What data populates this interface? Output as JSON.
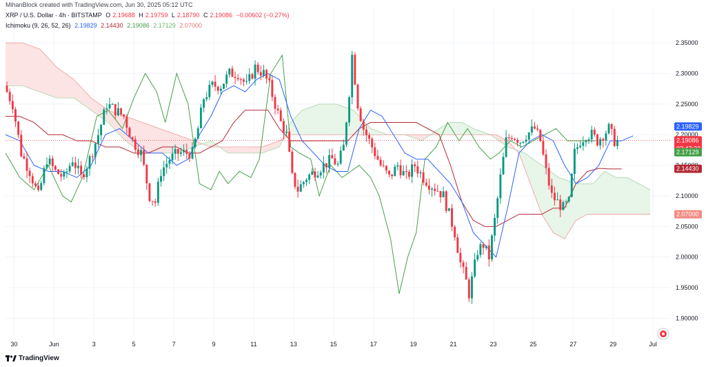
{
  "header": {
    "created_by": "MihanBlock created with TradingView.com, Jun 30, 2025 05:12 UTC",
    "symbol": "XRP / U.S. Dollar · 4h · BITSTAMP",
    "open_label": "O",
    "open": "2.19688",
    "high_label": "H",
    "high": "2.19759",
    "low_label": "L",
    "low": "2.18790",
    "close_label": "C",
    "close": "2.19086",
    "change": "−0.00602 (−0.27%)",
    "indicator": "Ichimoku (9, 26, 52, 26)",
    "ind_conversion": "2.19829",
    "ind_base": "2.14430",
    "ind_lagging": "2.19086",
    "ind_leadA": "2.17129",
    "ind_leadB": "2.07000"
  },
  "footer": {
    "brand": "TradingView"
  },
  "colors": {
    "up": "#089981",
    "down": "#f23645",
    "conversion": "#2962ff",
    "base": "#b22833",
    "lagging": "#43a047",
    "leadA": "#a5d6a7",
    "leadB": "#ef9a9a",
    "cloud_green": "#e8f5e9",
    "cloud_red": "#fce4e4"
  },
  "chart_data": {
    "type": "candlestick",
    "title": "XRP / U.S. Dollar · 4h · BITSTAMP",
    "y_ticks": [
      "2.35000",
      "2.30000",
      "2.25000",
      "2.20000",
      "2.15000",
      "2.10000",
      "2.05000",
      "2.00000",
      "1.95000",
      "1.90000"
    ],
    "ylim": [
      1.87,
      2.375
    ],
    "x_ticks": [
      "30",
      "Jun",
      "3",
      "5",
      "7",
      "9",
      "11",
      "13",
      "15",
      "17",
      "19",
      "21",
      "23",
      "25",
      "27",
      "29",
      "Jul"
    ],
    "x_tick_index": [
      3,
      17,
      31,
      45,
      59,
      73,
      87,
      101,
      115,
      129,
      143,
      157,
      171,
      185,
      199,
      213,
      227
    ],
    "xlim": [
      0,
      233
    ],
    "price_tags": [
      {
        "label": "2.19829",
        "value": 2.19829,
        "color": "#2962ff"
      },
      {
        "label": "2.19086",
        "value": 2.19086,
        "color": "#f23645",
        "sub": "02:47:22"
      },
      {
        "label": "2.17129",
        "value": 2.17129,
        "color": "#43a047"
      },
      {
        "label": "2.14430",
        "value": 2.1443,
        "color": "#b22833"
      },
      {
        "label": "2.07000",
        "value": 2.07,
        "color": "#f28b82"
      }
    ],
    "last_price": 2.19086,
    "lagging_anchors": [
      [
        0,
        2.17
      ],
      [
        5,
        2.13
      ],
      [
        10,
        2.11
      ],
      [
        15,
        2.15
      ],
      [
        20,
        2.1
      ],
      [
        23,
        2.09
      ],
      [
        27,
        2.13
      ],
      [
        32,
        2.23
      ],
      [
        36,
        2.24
      ],
      [
        41,
        2.21
      ],
      [
        45,
        2.26
      ],
      [
        49,
        2.3
      ],
      [
        53,
        2.27
      ],
      [
        56,
        2.22
      ],
      [
        60,
        2.3
      ],
      [
        64,
        2.25
      ],
      [
        68,
        2.12
      ],
      [
        72,
        2.11
      ],
      [
        75,
        2.14
      ],
      [
        78,
        2.12
      ],
      [
        82,
        2.14
      ],
      [
        86,
        2.13
      ],
      [
        89,
        2.16
      ],
      [
        93,
        2.3
      ],
      [
        97,
        2.33
      ],
      [
        100,
        2.18
      ],
      [
        103,
        2.17
      ],
      [
        107,
        2.16
      ],
      [
        110,
        2.1
      ],
      [
        114,
        2.15
      ],
      [
        118,
        2.13
      ],
      [
        121,
        2.14
      ],
      [
        124,
        2.15
      ],
      [
        128,
        2.13
      ],
      [
        131,
        2.1
      ],
      [
        135,
        2.03
      ],
      [
        138,
        1.94
      ],
      [
        141,
        2.0
      ],
      [
        144,
        2.04
      ],
      [
        147,
        2.16
      ],
      [
        151,
        2.18
      ],
      [
        155,
        2.22
      ],
      [
        159,
        2.19
      ],
      [
        162,
        2.21
      ],
      [
        166,
        2.18
      ],
      [
        170,
        2.16
      ],
      [
        173,
        2.17
      ],
      [
        177,
        2.19
      ],
      [
        181,
        2.18
      ],
      [
        185,
        2.19
      ],
      [
        189,
        2.2
      ],
      [
        193,
        2.21
      ],
      [
        197,
        2.19
      ],
      [
        201,
        2.19
      ],
      [
        204,
        2.19
      ],
      [
        207,
        2.19
      ]
    ],
    "conversion_anchors": [
      [
        0,
        2.2
      ],
      [
        5,
        2.19
      ],
      [
        10,
        2.15
      ],
      [
        15,
        2.14
      ],
      [
        20,
        2.14
      ],
      [
        25,
        2.13
      ],
      [
        30,
        2.15
      ],
      [
        35,
        2.2
      ],
      [
        40,
        2.21
      ],
      [
        45,
        2.19
      ],
      [
        50,
        2.17
      ],
      [
        55,
        2.17
      ],
      [
        60,
        2.15
      ],
      [
        64,
        2.16
      ],
      [
        68,
        2.2
      ],
      [
        72,
        2.23
      ],
      [
        76,
        2.27
      ],
      [
        80,
        2.28
      ],
      [
        84,
        2.27
      ],
      [
        88,
        2.29
      ],
      [
        92,
        2.3
      ],
      [
        96,
        2.29
      ],
      [
        100,
        2.23
      ],
      [
        104,
        2.19
      ],
      [
        108,
        2.17
      ],
      [
        112,
        2.15
      ],
      [
        116,
        2.14
      ],
      [
        120,
        2.14
      ],
      [
        124,
        2.21
      ],
      [
        128,
        2.24
      ],
      [
        132,
        2.23
      ],
      [
        136,
        2.2
      ],
      [
        140,
        2.17
      ],
      [
        144,
        2.16
      ],
      [
        148,
        2.16
      ],
      [
        152,
        2.14
      ],
      [
        156,
        2.12
      ],
      [
        160,
        2.09
      ],
      [
        164,
        2.04
      ],
      [
        168,
        2.02
      ],
      [
        172,
        2.0
      ],
      [
        176,
        2.08
      ],
      [
        180,
        2.17
      ],
      [
        184,
        2.19
      ],
      [
        188,
        2.2
      ],
      [
        192,
        2.19
      ],
      [
        196,
        2.15
      ],
      [
        200,
        2.12
      ],
      [
        204,
        2.13
      ],
      [
        208,
        2.15
      ],
      [
        212,
        2.19
      ],
      [
        216,
        2.19
      ],
      [
        220,
        2.198
      ]
    ],
    "base_anchors": [
      [
        0,
        2.23
      ],
      [
        5,
        2.23
      ],
      [
        10,
        2.22
      ],
      [
        15,
        2.2
      ],
      [
        20,
        2.2
      ],
      [
        25,
        2.19
      ],
      [
        30,
        2.19
      ],
      [
        35,
        2.18
      ],
      [
        40,
        2.18
      ],
      [
        45,
        2.17
      ],
      [
        50,
        2.17
      ],
      [
        55,
        2.18
      ],
      [
        60,
        2.18
      ],
      [
        64,
        2.17
      ],
      [
        68,
        2.17
      ],
      [
        72,
        2.18
      ],
      [
        76,
        2.19
      ],
      [
        80,
        2.22
      ],
      [
        84,
        2.24
      ],
      [
        88,
        2.24
      ],
      [
        92,
        2.24
      ],
      [
        96,
        2.21
      ],
      [
        100,
        2.19
      ],
      [
        104,
        2.19
      ],
      [
        108,
        2.19
      ],
      [
        112,
        2.19
      ],
      [
        116,
        2.19
      ],
      [
        120,
        2.19
      ],
      [
        124,
        2.21
      ],
      [
        128,
        2.22
      ],
      [
        132,
        2.22
      ],
      [
        136,
        2.22
      ],
      [
        140,
        2.22
      ],
      [
        144,
        2.22
      ],
      [
        148,
        2.21
      ],
      [
        152,
        2.2
      ],
      [
        156,
        2.15
      ],
      [
        160,
        2.09
      ],
      [
        164,
        2.06
      ],
      [
        168,
        2.05
      ],
      [
        172,
        2.05
      ],
      [
        176,
        2.06
      ],
      [
        180,
        2.07
      ],
      [
        184,
        2.07
      ],
      [
        188,
        2.07
      ],
      [
        192,
        2.08
      ],
      [
        196,
        2.08
      ],
      [
        200,
        2.12
      ],
      [
        204,
        2.14
      ],
      [
        208,
        2.145
      ],
      [
        212,
        2.144
      ],
      [
        216,
        2.144
      ]
    ],
    "leadA_anchors": [
      [
        0,
        2.28
      ],
      [
        6,
        2.28
      ],
      [
        12,
        2.27
      ],
      [
        18,
        2.26
      ],
      [
        24,
        2.26
      ],
      [
        30,
        2.24
      ],
      [
        36,
        2.22
      ],
      [
        42,
        2.19
      ],
      [
        48,
        2.17
      ],
      [
        54,
        2.17
      ],
      [
        60,
        2.17
      ],
      [
        66,
        2.18
      ],
      [
        72,
        2.19
      ],
      [
        78,
        2.17
      ],
      [
        84,
        2.17
      ],
      [
        90,
        2.17
      ],
      [
        96,
        2.18
      ],
      [
        100,
        2.22
      ],
      [
        104,
        2.24
      ],
      [
        110,
        2.25
      ],
      [
        116,
        2.25
      ],
      [
        122,
        2.24
      ],
      [
        128,
        2.21
      ],
      [
        134,
        2.2
      ],
      [
        140,
        2.2
      ],
      [
        146,
        2.19
      ],
      [
        152,
        2.21
      ],
      [
        156,
        2.22
      ],
      [
        160,
        2.22
      ],
      [
        164,
        2.21
      ],
      [
        170,
        2.2
      ],
      [
        176,
        2.18
      ],
      [
        182,
        2.17
      ],
      [
        188,
        2.15
      ],
      [
        194,
        2.13
      ],
      [
        200,
        2.12
      ],
      [
        206,
        2.12
      ],
      [
        210,
        2.14
      ],
      [
        214,
        2.13
      ],
      [
        218,
        2.13
      ],
      [
        222,
        2.12
      ],
      [
        226,
        2.11
      ]
    ],
    "leadB_anchors": [
      [
        0,
        2.35
      ],
      [
        6,
        2.35
      ],
      [
        12,
        2.34
      ],
      [
        18,
        2.31
      ],
      [
        24,
        2.29
      ],
      [
        30,
        2.26
      ],
      [
        36,
        2.24
      ],
      [
        42,
        2.23
      ],
      [
        48,
        2.22
      ],
      [
        54,
        2.21
      ],
      [
        60,
        2.2
      ],
      [
        66,
        2.19
      ],
      [
        72,
        2.18
      ],
      [
        78,
        2.18
      ],
      [
        84,
        2.18
      ],
      [
        90,
        2.18
      ],
      [
        96,
        2.19
      ],
      [
        100,
        2.2
      ],
      [
        106,
        2.2
      ],
      [
        112,
        2.2
      ],
      [
        118,
        2.2
      ],
      [
        124,
        2.2
      ],
      [
        130,
        2.2
      ],
      [
        136,
        2.2
      ],
      [
        142,
        2.2
      ],
      [
        148,
        2.2
      ],
      [
        154,
        2.2
      ],
      [
        160,
        2.2
      ],
      [
        166,
        2.2
      ],
      [
        172,
        2.2
      ],
      [
        176,
        2.19
      ],
      [
        180,
        2.17
      ],
      [
        184,
        2.12
      ],
      [
        188,
        2.07
      ],
      [
        192,
        2.04
      ],
      [
        196,
        2.03
      ],
      [
        200,
        2.06
      ],
      [
        204,
        2.07
      ],
      [
        210,
        2.07
      ],
      [
        216,
        2.07
      ],
      [
        222,
        2.07
      ],
      [
        226,
        2.07
      ]
    ],
    "price_anchors": [
      [
        0,
        2.28
      ],
      [
        3,
        2.25
      ],
      [
        6,
        2.17
      ],
      [
        9,
        2.14
      ],
      [
        12,
        2.1
      ],
      [
        15,
        2.16
      ],
      [
        18,
        2.14
      ],
      [
        21,
        2.13
      ],
      [
        24,
        2.16
      ],
      [
        27,
        2.13
      ],
      [
        30,
        2.16
      ],
      [
        33,
        2.2
      ],
      [
        36,
        2.25
      ],
      [
        39,
        2.24
      ],
      [
        42,
        2.23
      ],
      [
        45,
        2.19
      ],
      [
        48,
        2.17
      ],
      [
        51,
        2.1
      ],
      [
        53,
        2.09
      ],
      [
        55,
        2.14
      ],
      [
        58,
        2.16
      ],
      [
        61,
        2.17
      ],
      [
        64,
        2.17
      ],
      [
        66,
        2.17
      ],
      [
        68,
        2.21
      ],
      [
        70,
        2.26
      ],
      [
        73,
        2.28
      ],
      [
        76,
        2.28
      ],
      [
        79,
        2.3
      ],
      [
        82,
        2.3
      ],
      [
        85,
        2.28
      ],
      [
        88,
        2.31
      ],
      [
        91,
        2.3
      ],
      [
        93,
        2.28
      ],
      [
        95,
        2.25
      ],
      [
        97,
        2.22
      ],
      [
        99,
        2.2
      ],
      [
        101,
        2.13
      ],
      [
        103,
        2.11
      ],
      [
        106,
        2.13
      ],
      [
        109,
        2.14
      ],
      [
        112,
        2.15
      ],
      [
        115,
        2.16
      ],
      [
        117,
        2.15
      ],
      [
        119,
        2.18
      ],
      [
        121,
        2.27
      ],
      [
        122,
        2.33
      ],
      [
        124,
        2.25
      ],
      [
        126,
        2.21
      ],
      [
        128,
        2.19
      ],
      [
        130,
        2.17
      ],
      [
        132,
        2.15
      ],
      [
        135,
        2.13
      ],
      [
        138,
        2.15
      ],
      [
        141,
        2.13
      ],
      [
        144,
        2.15
      ],
      [
        147,
        2.13
      ],
      [
        149,
        2.12
      ],
      [
        152,
        2.11
      ],
      [
        154,
        2.1
      ],
      [
        156,
        2.07
      ],
      [
        158,
        2.04
      ],
      [
        160,
        1.99
      ],
      [
        162,
        1.96
      ],
      [
        163,
        1.94
      ],
      [
        166,
        2.01
      ],
      [
        168,
        2.02
      ],
      [
        170,
        2.0
      ],
      [
        172,
        2.06
      ],
      [
        174,
        2.13
      ],
      [
        176,
        2.19
      ],
      [
        178,
        2.2
      ],
      [
        181,
        2.19
      ],
      [
        183,
        2.2
      ],
      [
        186,
        2.21
      ],
      [
        188,
        2.19
      ],
      [
        190,
        2.14
      ],
      [
        192,
        2.1
      ],
      [
        194,
        2.09
      ],
      [
        196,
        2.08
      ],
      [
        198,
        2.09
      ],
      [
        200,
        2.17
      ],
      [
        202,
        2.19
      ],
      [
        204,
        2.2
      ],
      [
        206,
        2.2
      ],
      [
        208,
        2.19
      ],
      [
        210,
        2.2
      ],
      [
        212,
        2.21
      ],
      [
        214,
        2.19
      ]
    ]
  }
}
